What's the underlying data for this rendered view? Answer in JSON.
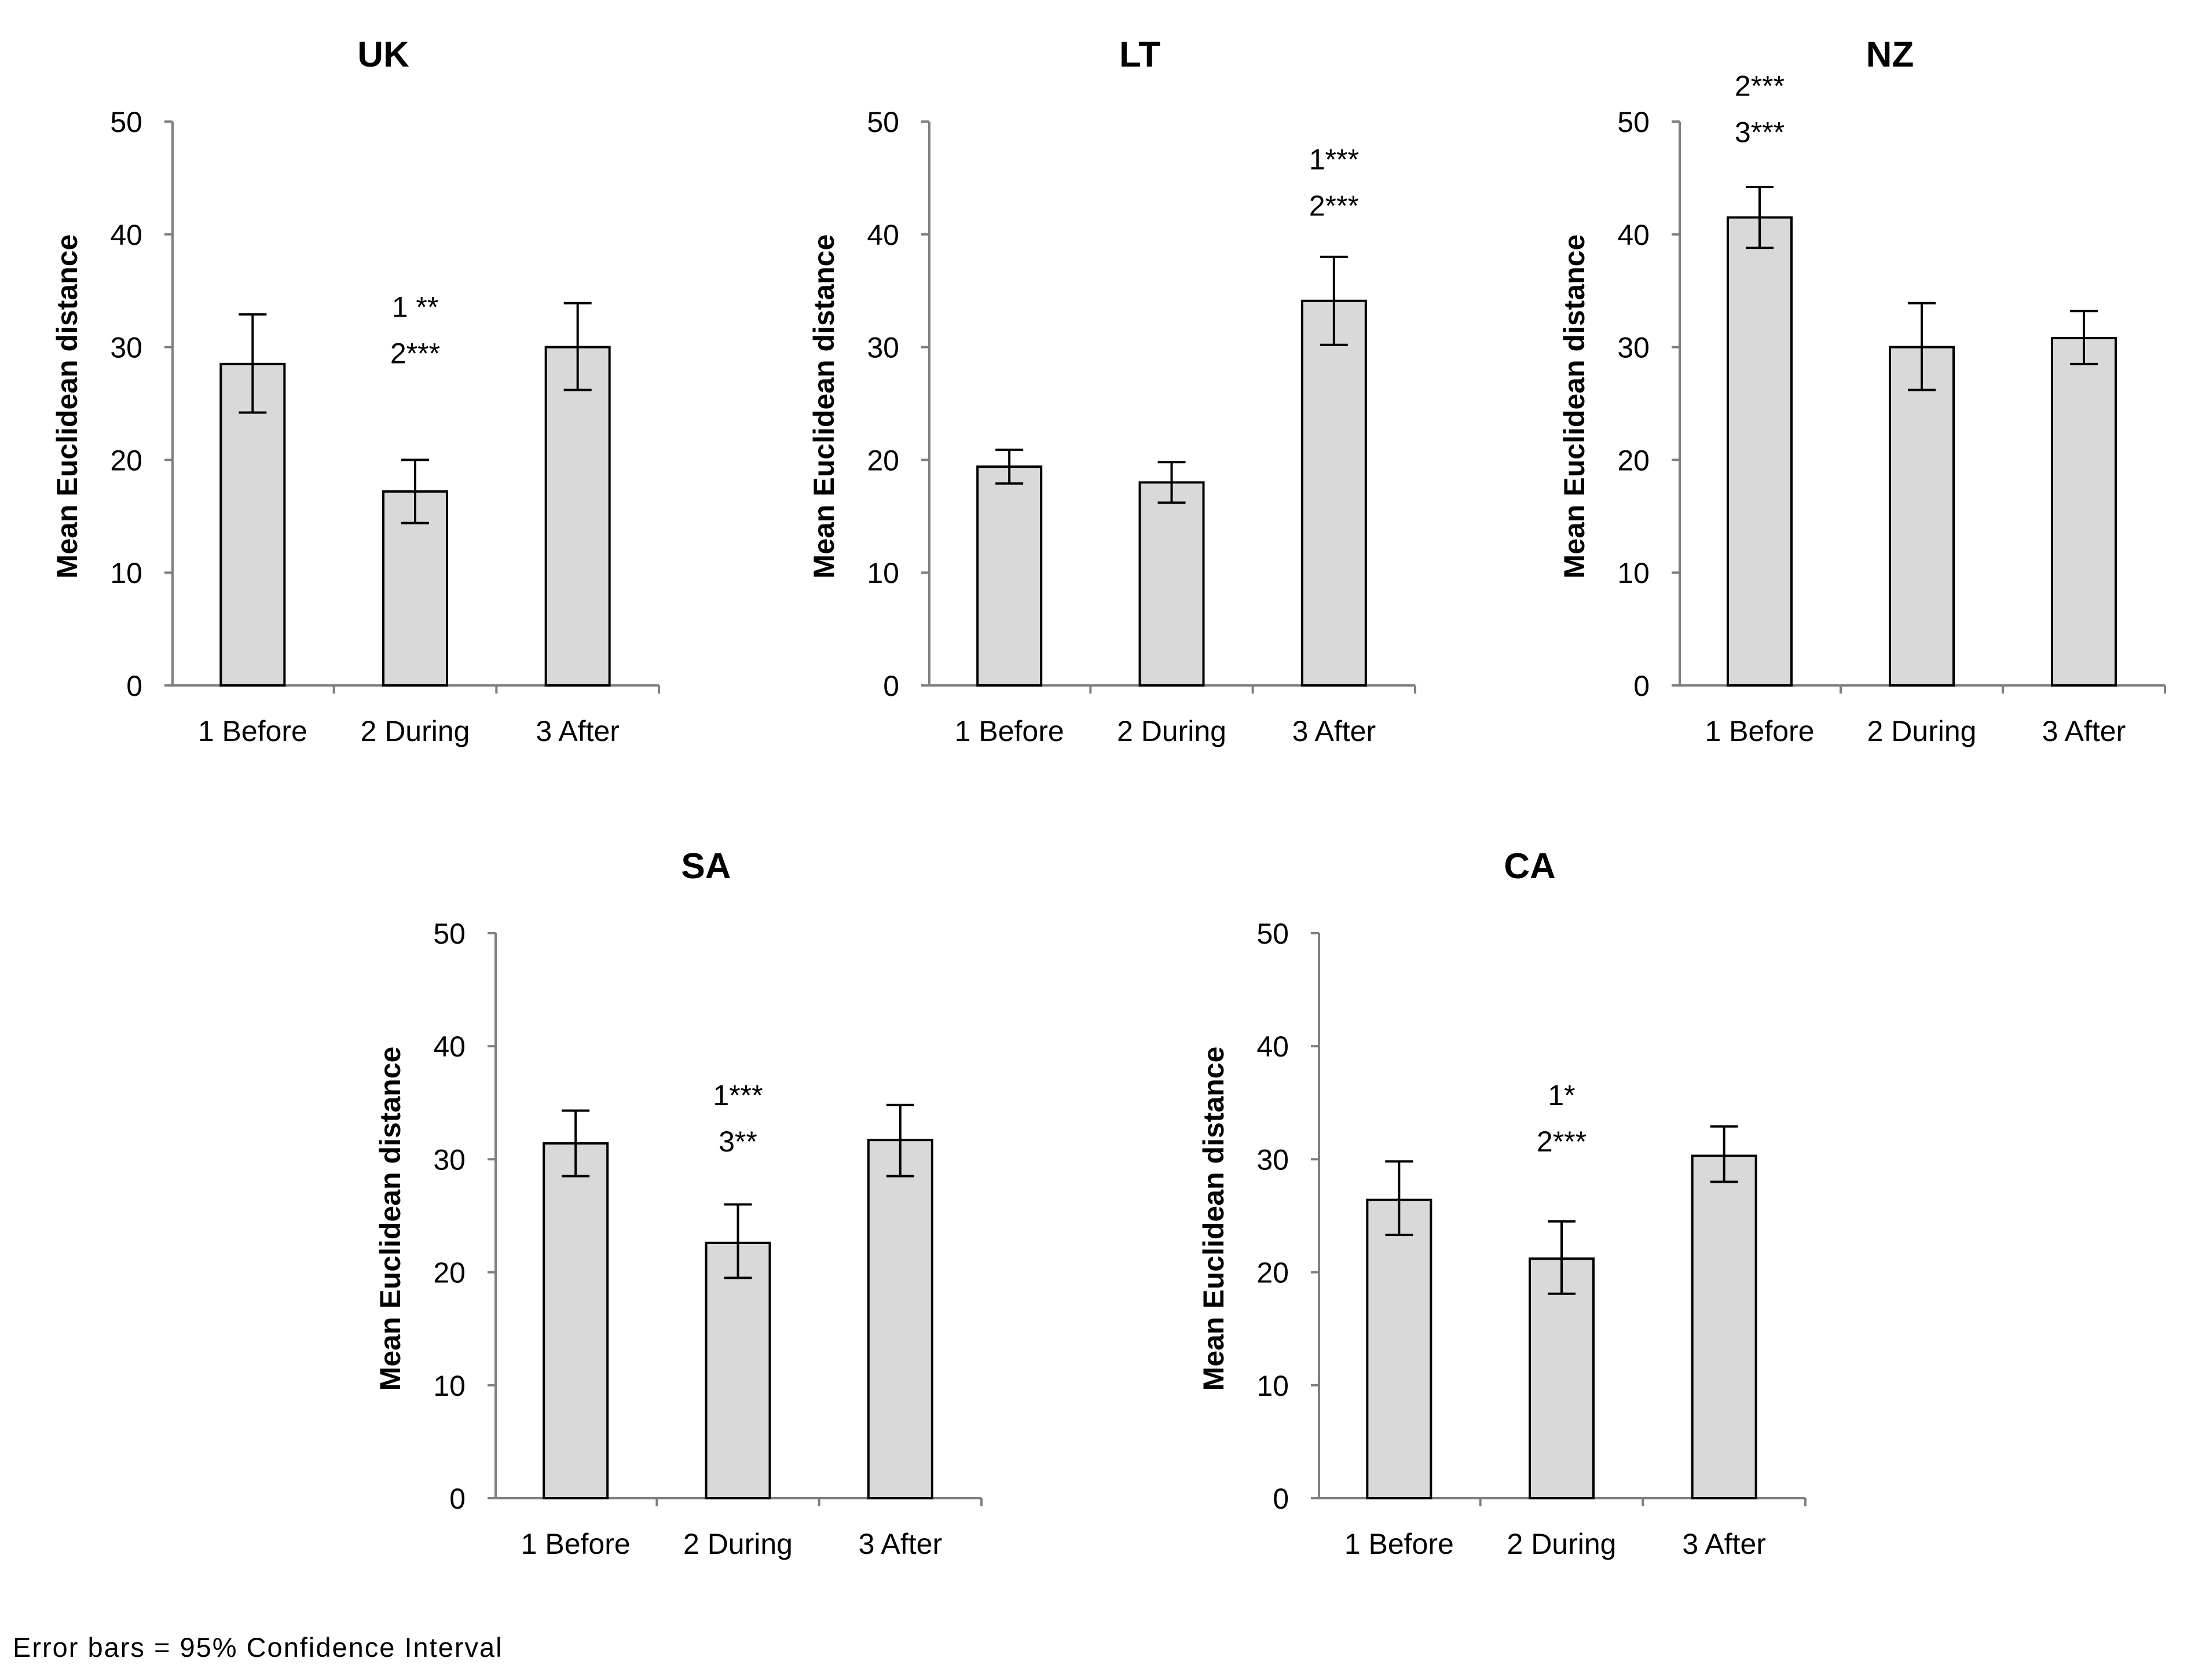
{
  "chart_data": [
    {
      "type": "bar",
      "title": "UK",
      "categories": [
        "1 Before",
        "2 During",
        "3 After"
      ],
      "values": [
        28.5,
        17.2,
        30.0
      ],
      "error_low": [
        24.2,
        14.4,
        26.2
      ],
      "error_high": [
        32.9,
        20.0,
        33.9
      ],
      "ylabel": "Mean Euclidean  distance",
      "ylim": [
        0,
        50
      ],
      "yticks": [
        "0",
        "10",
        "20",
        "30",
        "40",
        "50"
      ],
      "annotations": [
        {
          "category": "2 During",
          "lines": [
            "1 **",
            "2***"
          ],
          "value": 33.7
        }
      ]
    },
    {
      "type": "bar",
      "title": "LT",
      "categories": [
        "1 Before",
        "2 During",
        "3 After"
      ],
      "values": [
        19.4,
        18.0,
        34.1
      ],
      "error_low": [
        17.9,
        16.2,
        30.2
      ],
      "error_high": [
        20.9,
        19.8,
        38.0
      ],
      "ylabel": "Mean Euclidean  distance",
      "ylim": [
        0,
        50
      ],
      "yticks": [
        "0",
        "10",
        "20",
        "30",
        "40",
        "50"
      ],
      "annotations": [
        {
          "category": "3 After",
          "lines": [
            "1***",
            "2***"
          ],
          "value": 46.8
        }
      ]
    },
    {
      "type": "bar",
      "title": "NZ",
      "categories": [
        "1 Before",
        "2 During",
        "3 After"
      ],
      "values": [
        41.5,
        30.0,
        30.8
      ],
      "error_low": [
        38.8,
        26.2,
        28.5
      ],
      "error_high": [
        44.2,
        33.9,
        33.2
      ],
      "ylabel": "Mean Euclidean  distance",
      "ylim": [
        0,
        50
      ],
      "yticks": [
        "0",
        "10",
        "20",
        "30",
        "40",
        "50"
      ],
      "annotations": [
        {
          "category": "1 Before",
          "lines": [
            "2***",
            "3***"
          ],
          "value": 53.3
        }
      ]
    },
    {
      "type": "bar",
      "title": "SA",
      "categories": [
        "1 Before",
        "2 During",
        "3 After"
      ],
      "values": [
        31.4,
        22.6,
        31.7
      ],
      "error_low": [
        28.5,
        19.5,
        28.5
      ],
      "error_high": [
        34.3,
        26.0,
        34.8
      ],
      "ylabel": "Mean Euclidean  distance",
      "ylim": [
        0,
        50
      ],
      "yticks": [
        "0",
        "10",
        "20",
        "30",
        "40",
        "50"
      ],
      "annotations": [
        {
          "category": "2 During",
          "lines": [
            "1***",
            "3**"
          ],
          "value": 35.8
        }
      ]
    },
    {
      "type": "bar",
      "title": "CA",
      "categories": [
        "1 Before",
        "2 During",
        "3 After"
      ],
      "values": [
        26.4,
        21.2,
        30.3
      ],
      "error_low": [
        23.3,
        18.1,
        28.0
      ],
      "error_high": [
        29.8,
        24.5,
        32.9
      ],
      "ylabel": "Mean Euclidean  distance",
      "ylim": [
        0,
        50
      ],
      "yticks": [
        "0",
        "10",
        "20",
        "30",
        "40",
        "50"
      ],
      "annotations": [
        {
          "category": "2 During",
          "lines": [
            "1*",
            "2***"
          ],
          "value": 35.8
        }
      ]
    }
  ],
  "footnote": "Error bars = 95% Confidence Interval",
  "colors": {
    "bar_fill": "#d9d9d9",
    "bar_stroke": "#000000",
    "axis": "#7f7f7f",
    "text": "#000000"
  }
}
